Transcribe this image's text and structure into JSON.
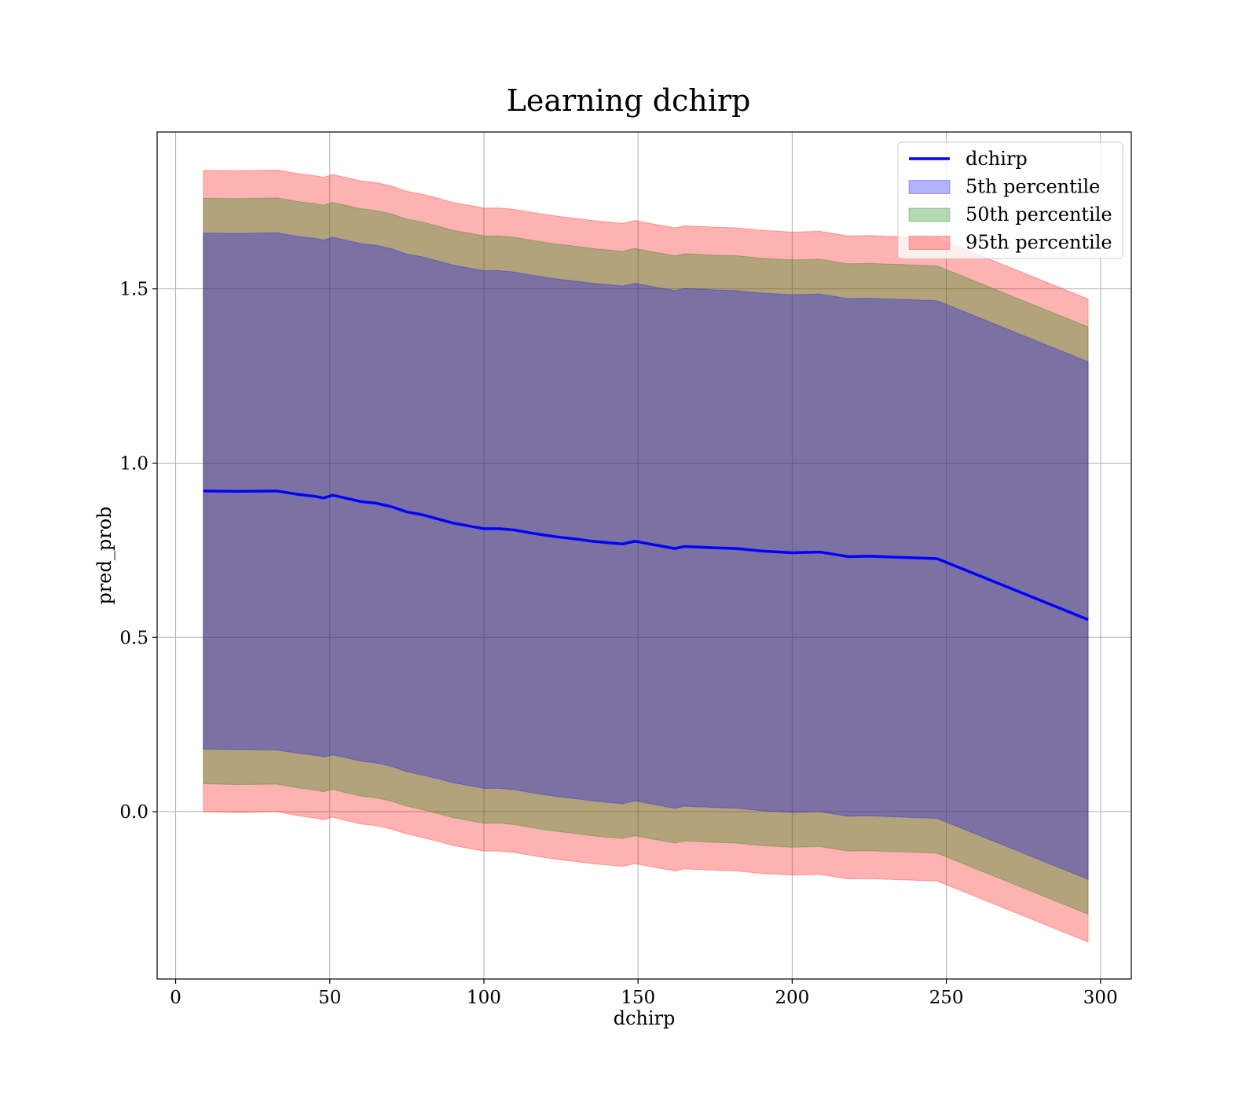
{
  "chart_data": {
    "type": "area",
    "title": "Learning dchirp",
    "xlabel": "dchirp",
    "ylabel": "pred_prob",
    "xlim": [
      -6,
      310
    ],
    "ylim": [
      -0.48,
      1.95
    ],
    "x_ticks": [
      0,
      50,
      100,
      150,
      200,
      250,
      300
    ],
    "y_ticks": [
      0.0,
      0.5,
      1.0,
      1.5
    ],
    "x_tick_labels": [
      "0",
      "50",
      "100",
      "150",
      "200",
      "250",
      "300"
    ],
    "y_tick_labels": [
      "0.0",
      "0.5",
      "1.0",
      "1.5"
    ],
    "grid": true,
    "legend_position": "top-right",
    "x": [
      9,
      20,
      33,
      40,
      45,
      48,
      51,
      55,
      60,
      65,
      70,
      75,
      80,
      85,
      90,
      95,
      100,
      105,
      110,
      115,
      120,
      125,
      130,
      135,
      140,
      145,
      149,
      155,
      162,
      165,
      175,
      182,
      190,
      200,
      209,
      218,
      225,
      247,
      296
    ],
    "series": [
      {
        "name": "dchirp",
        "kind": "line",
        "color": "#0000ff",
        "values": [
          0.92,
          0.919,
          0.92,
          0.91,
          0.905,
          0.9,
          0.908,
          0.9,
          0.89,
          0.885,
          0.875,
          0.86,
          0.852,
          0.84,
          0.828,
          0.82,
          0.812,
          0.812,
          0.808,
          0.8,
          0.793,
          0.787,
          0.782,
          0.776,
          0.772,
          0.768,
          0.776,
          0.766,
          0.755,
          0.761,
          0.757,
          0.755,
          0.748,
          0.743,
          0.745,
          0.732,
          0.733,
          0.726,
          0.551
        ]
      },
      {
        "name": "5th percentile",
        "kind": "band",
        "color": "#0000ff",
        "lower": [
          0.18,
          0.178,
          0.177,
          0.167,
          0.162,
          0.157,
          0.163,
          0.155,
          0.145,
          0.14,
          0.13,
          0.115,
          0.105,
          0.095,
          0.083,
          0.075,
          0.067,
          0.067,
          0.063,
          0.055,
          0.048,
          0.042,
          0.037,
          0.031,
          0.027,
          0.023,
          0.031,
          0.021,
          0.01,
          0.016,
          0.012,
          0.01,
          0.003,
          -0.002,
          0.0,
          -0.013,
          -0.012,
          -0.019,
          -0.194
        ],
        "upper": [
          1.66,
          1.659,
          1.661,
          1.65,
          1.645,
          1.64,
          1.648,
          1.64,
          1.63,
          1.625,
          1.615,
          1.6,
          1.592,
          1.58,
          1.568,
          1.56,
          1.552,
          1.552,
          1.548,
          1.54,
          1.533,
          1.527,
          1.522,
          1.516,
          1.512,
          1.508,
          1.516,
          1.506,
          1.495,
          1.501,
          1.497,
          1.495,
          1.488,
          1.483,
          1.485,
          1.472,
          1.473,
          1.466,
          1.291
        ]
      },
      {
        "name": "50th percentile",
        "kind": "band",
        "color": "#008000",
        "lower": [
          0.08,
          0.078,
          0.079,
          0.068,
          0.062,
          0.057,
          0.064,
          0.055,
          0.045,
          0.04,
          0.03,
          0.016,
          0.006,
          -0.005,
          -0.017,
          -0.025,
          -0.033,
          -0.033,
          -0.037,
          -0.045,
          -0.052,
          -0.058,
          -0.063,
          -0.069,
          -0.073,
          -0.077,
          -0.069,
          -0.079,
          -0.09,
          -0.084,
          -0.088,
          -0.09,
          -0.097,
          -0.102,
          -0.1,
          -0.113,
          -0.112,
          -0.119,
          -0.294
        ],
        "upper": [
          1.76,
          1.759,
          1.761,
          1.75,
          1.745,
          1.74,
          1.748,
          1.74,
          1.73,
          1.725,
          1.715,
          1.7,
          1.692,
          1.68,
          1.668,
          1.66,
          1.652,
          1.652,
          1.648,
          1.64,
          1.633,
          1.627,
          1.622,
          1.616,
          1.612,
          1.608,
          1.616,
          1.606,
          1.595,
          1.601,
          1.597,
          1.595,
          1.588,
          1.583,
          1.585,
          1.572,
          1.573,
          1.566,
          1.391
        ]
      },
      {
        "name": "95th percentile",
        "kind": "band",
        "color": "#ff0000",
        "lower": [
          0.0,
          -0.002,
          0.0,
          -0.012,
          -0.018,
          -0.023,
          -0.016,
          -0.025,
          -0.035,
          -0.04,
          -0.05,
          -0.064,
          -0.074,
          -0.085,
          -0.097,
          -0.105,
          -0.113,
          -0.113,
          -0.117,
          -0.125,
          -0.132,
          -0.138,
          -0.143,
          -0.149,
          -0.153,
          -0.157,
          -0.149,
          -0.159,
          -0.17,
          -0.164,
          -0.168,
          -0.17,
          -0.177,
          -0.182,
          -0.18,
          -0.193,
          -0.192,
          -0.199,
          -0.374
        ],
        "upper": [
          1.84,
          1.839,
          1.841,
          1.83,
          1.825,
          1.82,
          1.828,
          1.82,
          1.81,
          1.805,
          1.795,
          1.78,
          1.772,
          1.76,
          1.748,
          1.74,
          1.732,
          1.732,
          1.728,
          1.72,
          1.713,
          1.707,
          1.702,
          1.696,
          1.692,
          1.688,
          1.696,
          1.686,
          1.675,
          1.681,
          1.677,
          1.675,
          1.668,
          1.663,
          1.665,
          1.652,
          1.653,
          1.646,
          1.471
        ]
      }
    ]
  }
}
